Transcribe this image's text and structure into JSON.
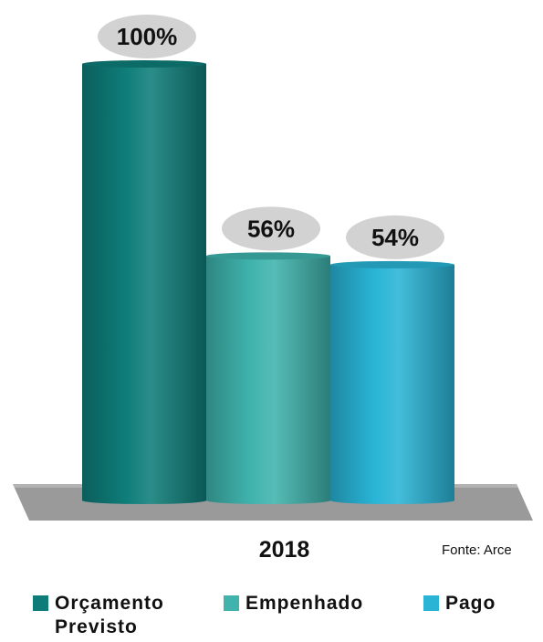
{
  "chart_data": {
    "type": "bar",
    "title": "",
    "categories": [
      "2018"
    ],
    "series": [
      {
        "name": "Orçamento Previsto",
        "values": [
          100
        ],
        "label": "100%",
        "color": "#0e7d79"
      },
      {
        "name": "Empenhado",
        "values": [
          56
        ],
        "label": "56%",
        "color": "#3fb3ac"
      },
      {
        "name": "Pago",
        "values": [
          54
        ],
        "label": "54%",
        "color": "#29b4d6"
      }
    ],
    "unit": "%",
    "ylim": [
      0,
      100
    ],
    "grid": false,
    "legend_position": "bottom"
  },
  "source_note": "Fonte: Arce",
  "floor_color": "#9a9a9a",
  "label_bubble_color": "#d2d2d2"
}
